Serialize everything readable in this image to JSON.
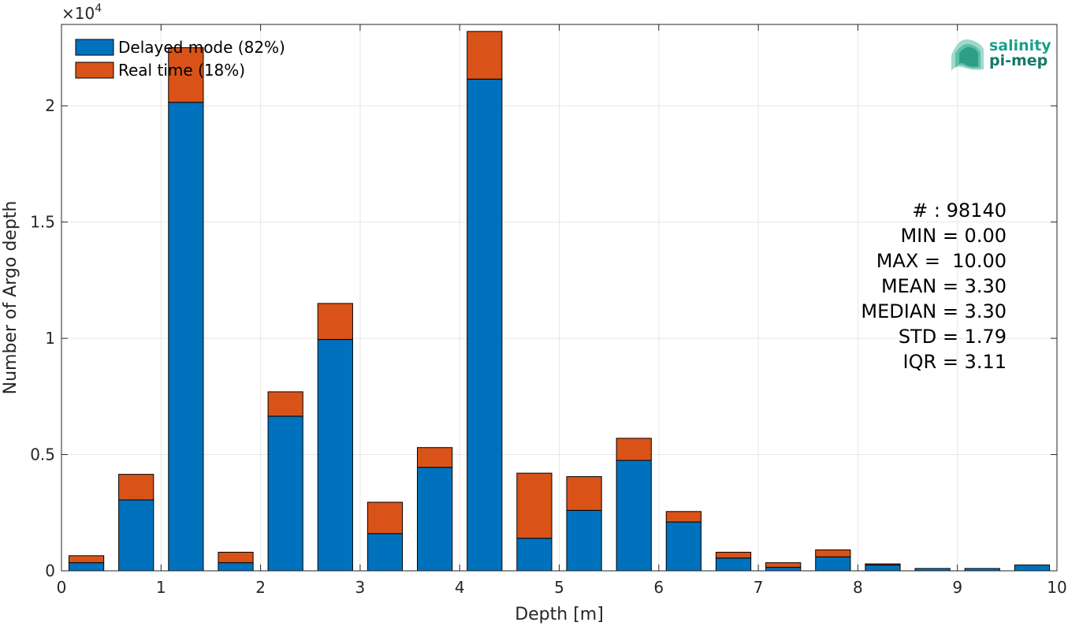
{
  "chart_data": {
    "type": "bar",
    "stacked": true,
    "xlabel": "Depth [m]",
    "ylabel": "Number of Argo depth",
    "exponent_label": "×10",
    "exponent_power": "4",
    "xlim": [
      0,
      10
    ],
    "ylim": [
      0,
      23500
    ],
    "x_ticks": [
      "0",
      "1",
      "2",
      "3",
      "4",
      "5",
      "6",
      "7",
      "8",
      "9",
      "10"
    ],
    "y_ticks": [
      {
        "value": 0,
        "label": "0"
      },
      {
        "value": 5000,
        "label": "0.5"
      },
      {
        "value": 10000,
        "label": "1"
      },
      {
        "value": 15000,
        "label": "1.5"
      },
      {
        "value": 20000,
        "label": "2"
      }
    ],
    "grid": true,
    "legend_position": "top-left",
    "bin_centers": [
      0.25,
      0.75,
      1.25,
      1.75,
      2.25,
      2.75,
      3.25,
      3.75,
      4.25,
      4.75,
      5.25,
      5.75,
      6.25,
      6.75,
      7.25,
      7.75,
      8.25,
      8.75,
      9.25,
      9.75
    ],
    "series": [
      {
        "name": "Delayed mode (82%)",
        "color": "#0072BD",
        "values": [
          350,
          3050,
          20150,
          350,
          6650,
          9950,
          1600,
          4450,
          21150,
          1400,
          2600,
          4750,
          2100,
          550,
          150,
          600,
          250,
          100,
          100,
          250
        ]
      },
      {
        "name": "Real time (18%)",
        "color": "#D95319",
        "values": [
          300,
          1100,
          2350,
          450,
          1050,
          1550,
          1350,
          850,
          2050,
          2800,
          1450,
          950,
          450,
          250,
          200,
          300,
          50,
          0,
          0,
          0
        ]
      }
    ],
    "annotation_lines": [
      "# : 98140",
      "MIN = 0.00",
      "MAX =  10.00",
      "MEAN = 3.30",
      "MEDIAN = 3.30",
      "STD = 1.79",
      "IQR = 3.11"
    ]
  },
  "logo": {
    "line1": "salinity",
    "line2": "pi-mep",
    "color1": "#1aa08a",
    "color2": "#147a6a"
  }
}
